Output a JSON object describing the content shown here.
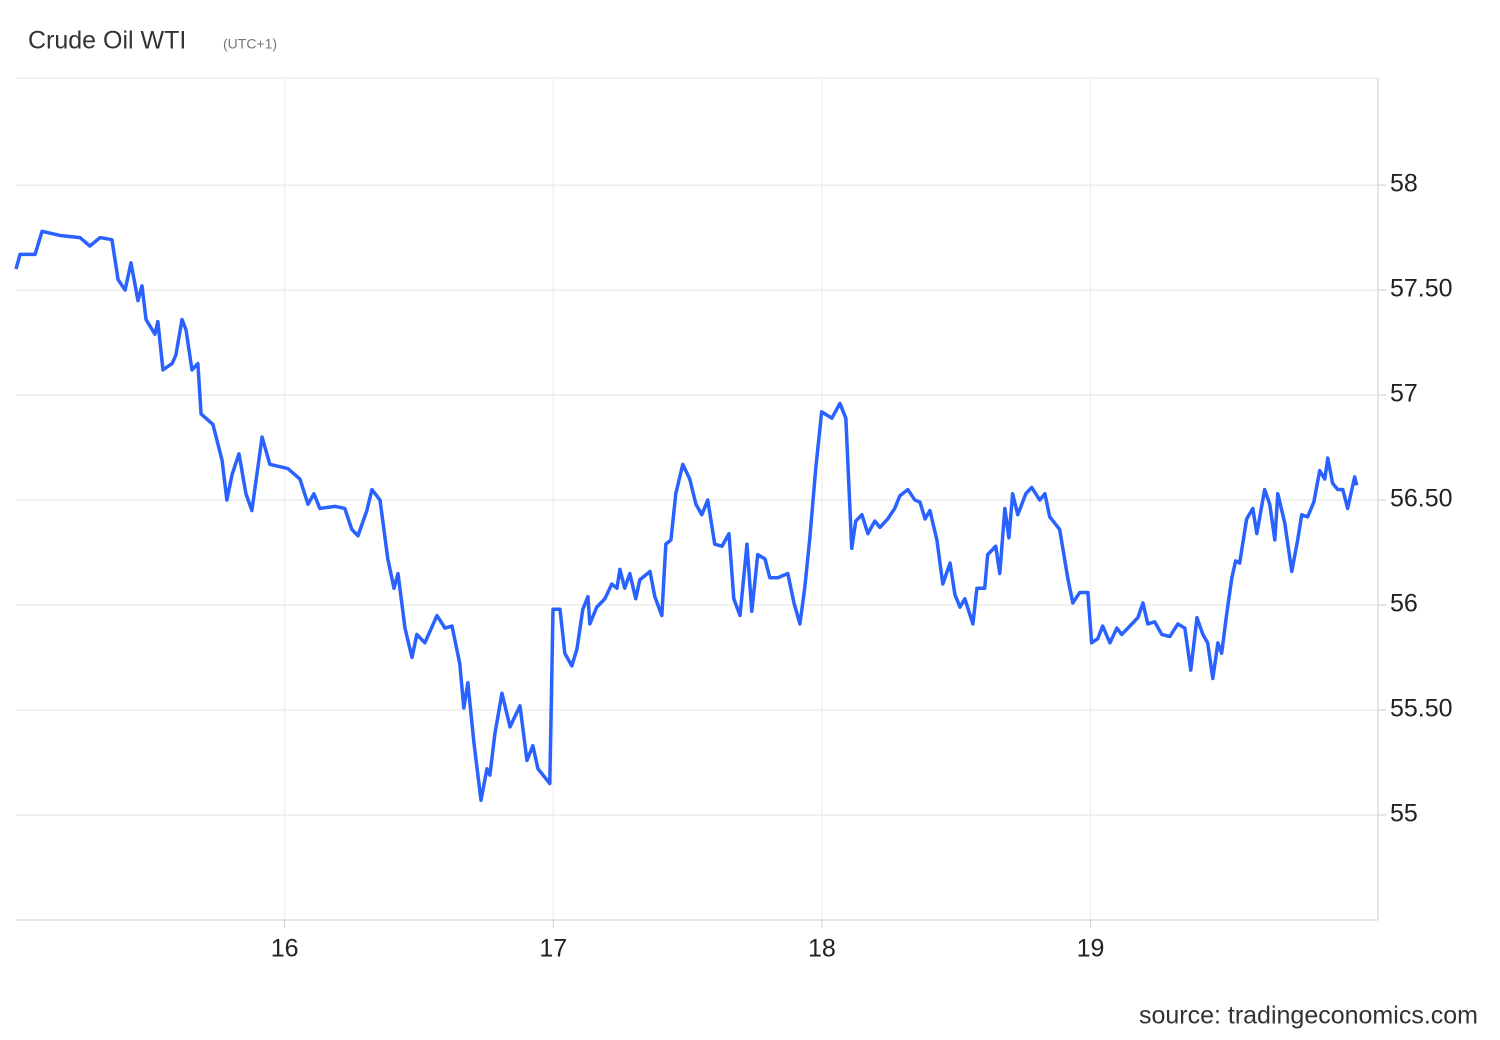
{
  "chart_data": {
    "type": "line",
    "title": "Crude Oil WTI",
    "subtitle": "(UTC+1)",
    "source": "source: tradingeconomics.com",
    "x": [
      15.0,
      15.015,
      15.071,
      15.097,
      15.164,
      15.238,
      15.275,
      15.313,
      15.357,
      15.38,
      15.406,
      15.428,
      15.454,
      15.469,
      15.484,
      15.517,
      15.528,
      15.547,
      15.581,
      15.595,
      15.618,
      15.633,
      15.655,
      15.677,
      15.689,
      15.733,
      15.767,
      15.785,
      15.804,
      15.83,
      15.856,
      15.878,
      15.916,
      15.945,
      16.012,
      16.057,
      16.087,
      16.109,
      16.131,
      16.187,
      16.224,
      16.25,
      16.273,
      16.306,
      16.325,
      16.355,
      16.384,
      16.407,
      16.422,
      16.448,
      16.474,
      16.492,
      16.522,
      16.567,
      16.597,
      16.623,
      16.652,
      16.667,
      16.682,
      16.705,
      16.731,
      16.753,
      16.764,
      16.783,
      16.809,
      16.839,
      16.876,
      16.902,
      16.924,
      16.943,
      16.987,
      16.999,
      17.025,
      17.043,
      17.069,
      17.088,
      17.11,
      17.129,
      17.136,
      17.162,
      17.192,
      17.218,
      17.237,
      17.248,
      17.266,
      17.285,
      17.307,
      17.322,
      17.36,
      17.378,
      17.404,
      17.419,
      17.438,
      17.456,
      17.482,
      17.508,
      17.531,
      17.553,
      17.575,
      17.601,
      17.628,
      17.654,
      17.672,
      17.695,
      17.721,
      17.739,
      17.761,
      17.788,
      17.806,
      17.836,
      17.873,
      17.896,
      17.918,
      17.936,
      17.955,
      17.977,
      17.999,
      18.037,
      18.067,
      18.089,
      18.111,
      18.126,
      18.149,
      18.171,
      18.197,
      18.216,
      18.245,
      18.271,
      18.29,
      18.32,
      18.346,
      18.365,
      18.384,
      18.402,
      18.428,
      18.45,
      18.477,
      18.495,
      18.514,
      18.532,
      18.562,
      18.577,
      18.606,
      18.617,
      18.647,
      18.662,
      18.681,
      18.696,
      18.71,
      18.729,
      18.759,
      18.781,
      18.811,
      18.83,
      18.848,
      18.885,
      18.915,
      18.934,
      18.96,
      18.99,
      19.004,
      19.027,
      19.045,
      19.072,
      19.098,
      19.116,
      19.139,
      19.176,
      19.195,
      19.213,
      19.239,
      19.265,
      19.295,
      19.325,
      19.351,
      19.373,
      19.396,
      19.418,
      19.436,
      19.455,
      19.474,
      19.488,
      19.507,
      19.526,
      19.54,
      19.555,
      19.581,
      19.604,
      19.619,
      19.648,
      19.667,
      19.686,
      19.697,
      19.723,
      19.749,
      19.771,
      19.786,
      19.808,
      19.831,
      19.853,
      19.872,
      19.883,
      19.901,
      19.92,
      19.939,
      19.957,
      19.983,
      19.991
    ],
    "series": [
      {
        "name": "Crude Oil WTI",
        "color": "#2962ff",
        "values": [
          57.6,
          57.67,
          57.67,
          57.78,
          57.76,
          57.75,
          57.71,
          57.75,
          57.74,
          57.55,
          57.5,
          57.63,
          57.45,
          57.52,
          57.36,
          57.29,
          57.35,
          57.12,
          57.15,
          57.19,
          57.36,
          57.31,
          57.12,
          57.15,
          56.91,
          56.86,
          56.69,
          56.5,
          56.62,
          56.72,
          56.53,
          56.45,
          56.8,
          56.67,
          56.65,
          56.6,
          56.48,
          56.53,
          56.46,
          56.47,
          56.46,
          56.36,
          56.33,
          56.45,
          56.55,
          56.5,
          56.22,
          56.08,
          56.15,
          55.89,
          55.75,
          55.86,
          55.82,
          55.95,
          55.89,
          55.9,
          55.72,
          55.51,
          55.63,
          55.34,
          55.07,
          55.22,
          55.19,
          55.39,
          55.58,
          55.42,
          55.52,
          55.26,
          55.33,
          55.22,
          55.15,
          55.98,
          55.98,
          55.77,
          55.71,
          55.79,
          55.98,
          56.04,
          55.91,
          55.99,
          56.03,
          56.1,
          56.08,
          56.17,
          56.08,
          56.15,
          56.03,
          56.12,
          56.16,
          56.04,
          55.95,
          56.29,
          56.31,
          56.53,
          56.67,
          56.6,
          56.48,
          56.43,
          56.5,
          56.29,
          56.28,
          56.34,
          56.03,
          55.95,
          56.29,
          55.97,
          56.24,
          56.22,
          56.13,
          56.13,
          56.15,
          56.01,
          55.91,
          56.08,
          56.32,
          56.65,
          56.92,
          56.89,
          56.96,
          56.89,
          56.27,
          56.4,
          56.43,
          56.34,
          56.4,
          56.37,
          56.41,
          56.46,
          56.52,
          56.55,
          56.5,
          56.49,
          56.41,
          56.45,
          56.31,
          56.1,
          56.2,
          56.05,
          55.99,
          56.03,
          55.91,
          56.08,
          56.08,
          56.24,
          56.28,
          56.15,
          56.46,
          56.32,
          56.53,
          56.43,
          56.53,
          56.56,
          56.5,
          56.53,
          56.42,
          56.36,
          56.13,
          56.01,
          56.06,
          56.06,
          55.82,
          55.84,
          55.9,
          55.82,
          55.89,
          55.86,
          55.89,
          55.94,
          56.01,
          55.91,
          55.92,
          55.86,
          55.85,
          55.91,
          55.89,
          55.69,
          55.94,
          55.86,
          55.82,
          55.65,
          55.82,
          55.77,
          55.96,
          56.13,
          56.21,
          56.2,
          56.41,
          56.46,
          56.34,
          56.55,
          56.48,
          56.31,
          56.53,
          56.39,
          56.16,
          56.31,
          56.43,
          56.42,
          56.49,
          56.64,
          56.6,
          56.7,
          56.58,
          56.55,
          56.55,
          56.46,
          56.61,
          56.57
        ]
      }
    ],
    "xlim": [
      15,
      20.07
    ],
    "xticks": [
      16,
      17,
      18,
      19
    ],
    "ylim": [
      54.5,
      58.51
    ],
    "yticks": [
      55,
      {
        "value": 55.5,
        "label": "55.50"
      },
      56,
      {
        "value": 56.5,
        "label": "56.50"
      },
      57,
      {
        "value": 57.5,
        "label": "57.50"
      },
      58
    ],
    "grid": true
  }
}
